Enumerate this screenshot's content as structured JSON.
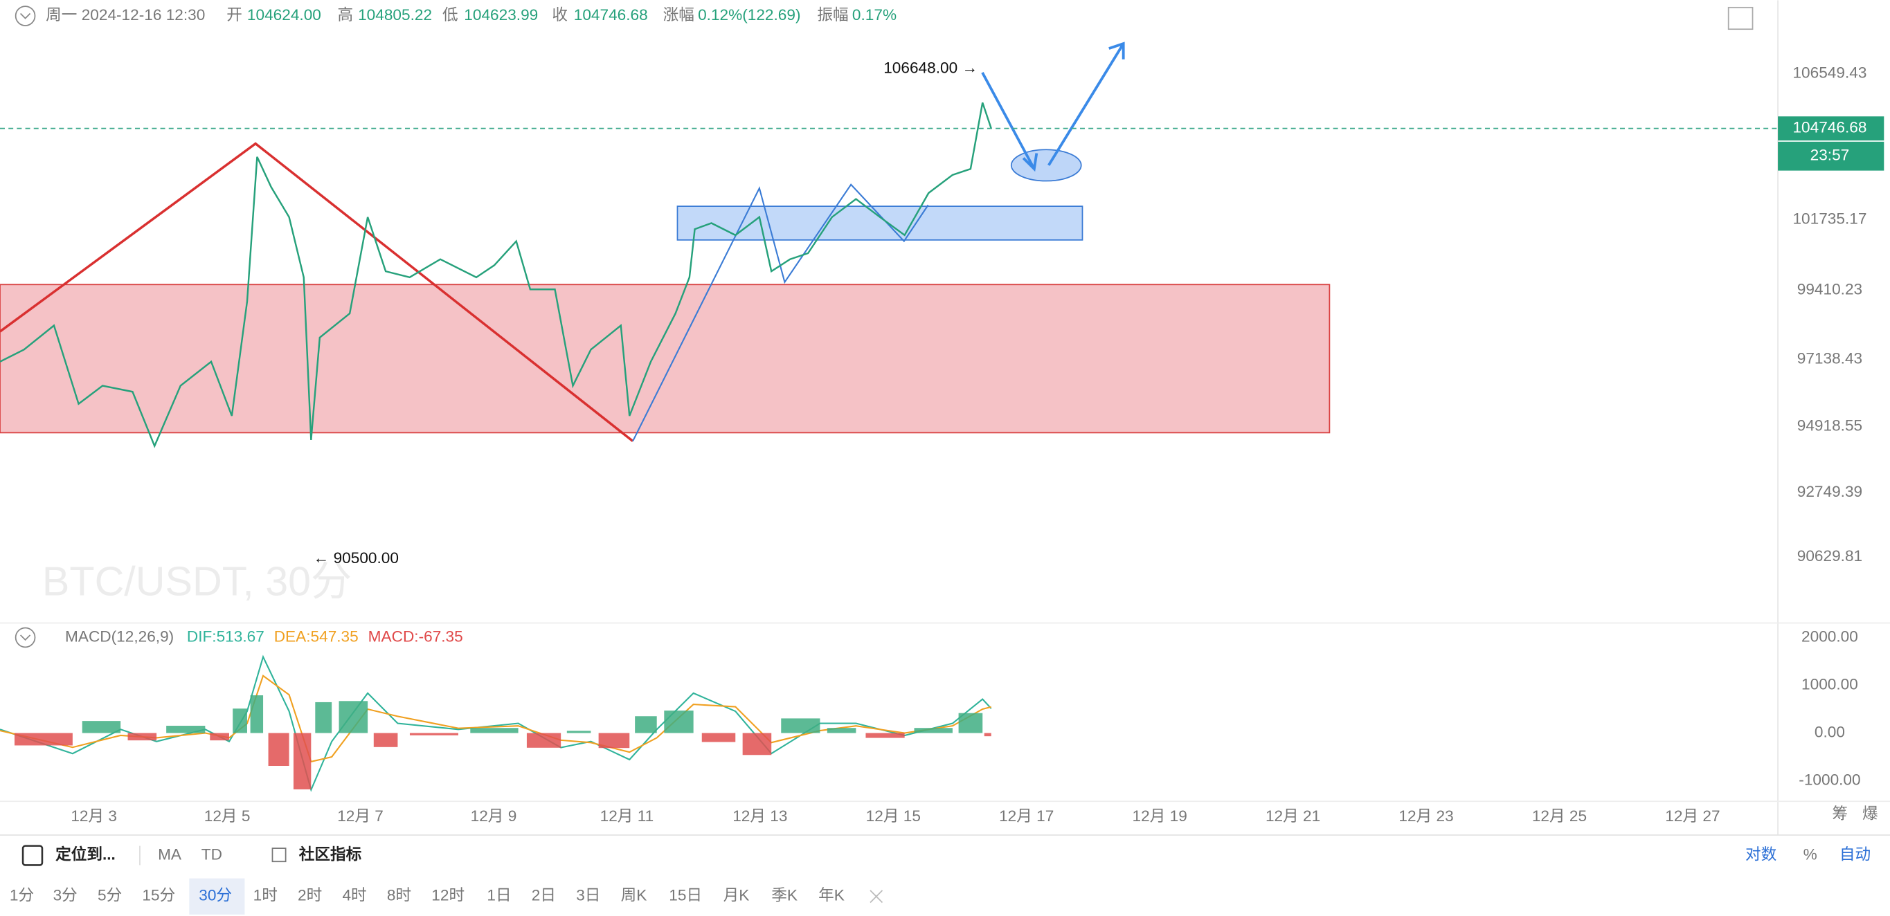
{
  "header": {
    "weekday_time": "周一 2024-12-16 12:30",
    "fields": [
      {
        "label": "开",
        "value": "104624.00"
      },
      {
        "label": "高",
        "value": "104805.22"
      },
      {
        "label": "低",
        "value": "104623.99"
      },
      {
        "label": "收",
        "value": "104746.68"
      },
      {
        "label": "涨幅",
        "value": "0.12%(122.69)"
      },
      {
        "label": "振幅",
        "value": "0.17%"
      }
    ]
  },
  "chart_data": [
    {
      "type": "line",
      "title": "BTC/USDT, 30分",
      "color": "#26a17b",
      "x": [
        1.59,
        1.95,
        2.4,
        2.77,
        3.13,
        3.58,
        3.91,
        4.3,
        4.76,
        5.07,
        5.3,
        5.45,
        5.66,
        5.93,
        6.15,
        6.26,
        6.39,
        6.84,
        7.11,
        7.38,
        7.74,
        8.2,
        8.74,
        9.01,
        9.34,
        9.55,
        9.92,
        10.19,
        10.46,
        10.91,
        11.04,
        11.36,
        11.73,
        11.94,
        12.02,
        12.27,
        12.63,
        12.99,
        13.17,
        13.45,
        13.72,
        14.08,
        14.44,
        14.8,
        15.17,
        15.53,
        15.89,
        16.16,
        16.34,
        16.47
      ],
      "values": [
        97061,
        97458,
        98252,
        95671,
        96267,
        96069,
        94282,
        96267,
        97061,
        95274,
        99046,
        103810,
        102817,
        101825,
        99840,
        94481,
        97855,
        98649,
        101825,
        100039,
        99840,
        100436,
        99840,
        100237,
        101031,
        99443,
        99443,
        96267,
        97458,
        98252,
        95274,
        97061,
        98649,
        99840,
        101428,
        101627,
        101230,
        101825,
        100039,
        100436,
        100634,
        101825,
        102421,
        101825,
        101230,
        102619,
        103216,
        103413,
        105597,
        104746.68
      ],
      "xlim": [
        1.59,
        28.28
      ],
      "ylim": [
        88447,
        108971
      ],
      "xticks": [
        {
          "value": 3,
          "label": "12月 3"
        },
        {
          "value": 5,
          "label": "12月 5"
        },
        {
          "value": 7,
          "label": "12月 7"
        },
        {
          "value": 9,
          "label": "12月 9"
        },
        {
          "value": 11,
          "label": "12月 11"
        },
        {
          "value": 13,
          "label": "12月 13"
        },
        {
          "value": 15,
          "label": "12月 15"
        },
        {
          "value": 17,
          "label": "12月 17"
        },
        {
          "value": 19,
          "label": "12月 19"
        },
        {
          "value": 21,
          "label": "12月 21"
        },
        {
          "value": 23,
          "label": "12月 23"
        },
        {
          "value": 25,
          "label": "12月 25"
        },
        {
          "value": 27,
          "label": "12月 27"
        }
      ],
      "yticks": [
        106549.43,
        101735.17,
        99410.23,
        97138.43,
        94918.55,
        92749.39,
        90629.81
      ],
      "last_price": 104746.68,
      "countdown": "23:57",
      "annotations": [
        "106648.00 →",
        "← 90500.00"
      ]
    },
    {
      "type": "macd",
      "title": "MACD(12,26,9)",
      "up_color": "#3fae82",
      "down_color": "#e05050",
      "x": [
        1.59,
        2.68,
        3.4,
        3.94,
        4.67,
        5.03,
        5.3,
        5.54,
        5.93,
        6.26,
        6.57,
        7.11,
        7.56,
        8.47,
        9.37,
        10.01,
        10.46,
        11.04,
        11.45,
        12.0,
        12.63,
        13.17,
        13.9,
        14.44,
        15.17,
        15.89,
        16.34,
        16.47
      ],
      "series": [
        {
          "name": "DIF:513.67",
          "color": "#2fb39a",
          "values": [
            76,
            -430,
            76,
            -177,
            76,
            -177,
            456,
            1595,
            456,
            -1190,
            -177,
            835,
            203,
            76,
            203,
            -304,
            -177,
            -557,
            76,
            835,
            456,
            -430,
            203,
            203,
            -51,
            203,
            709,
            513.67
          ]
        },
        {
          "name": "DEA:547.35",
          "color": "#f0a020",
          "values": [
            50,
            -300,
            -50,
            -100,
            0,
            -100,
            200,
            1200,
            800,
            -600,
            -500,
            500,
            350,
            100,
            150,
            -150,
            -200,
            -400,
            -100,
            600,
            550,
            -200,
            50,
            150,
            0,
            150,
            500,
            547.35
          ]
        },
        {
          "name": "MACD:-67.35",
          "type": "bar",
          "color": "#e04848",
          "values": [
            52,
            -260,
            252,
            -154,
            152,
            -154,
            512,
            790,
            -688,
            -1180,
            646,
            670,
            -294,
            -48,
            106,
            -308,
            46,
            -314,
            352,
            470,
            -188,
            -460,
            306,
            106,
            -102,
            106,
            418,
            -67.35
          ]
        }
      ],
      "ylim": [
        -1430,
        2304
      ],
      "yticks": [
        {
          "value": 2000,
          "label": "2000.00"
        },
        {
          "value": 1000,
          "label": "1000.00"
        },
        {
          "value": 0,
          "label": "0.00"
        },
        {
          "value": -1000,
          "label": "-1000.00"
        }
      ]
    }
  ],
  "toolbar": {
    "left": [
      "定位到...",
      "MA",
      "TD",
      "社区指标"
    ],
    "right": [
      "对数",
      "%",
      "自动"
    ],
    "side": [
      "筹",
      "爆"
    ],
    "intervals": [
      "1分",
      "3分",
      "5分",
      "15分",
      "30分",
      "1时",
      "2时",
      "4时",
      "8时",
      "12时",
      "1日",
      "2日",
      "3日",
      "周K",
      "15日",
      "月K",
      "季K",
      "年K"
    ],
    "selected": "30分"
  }
}
